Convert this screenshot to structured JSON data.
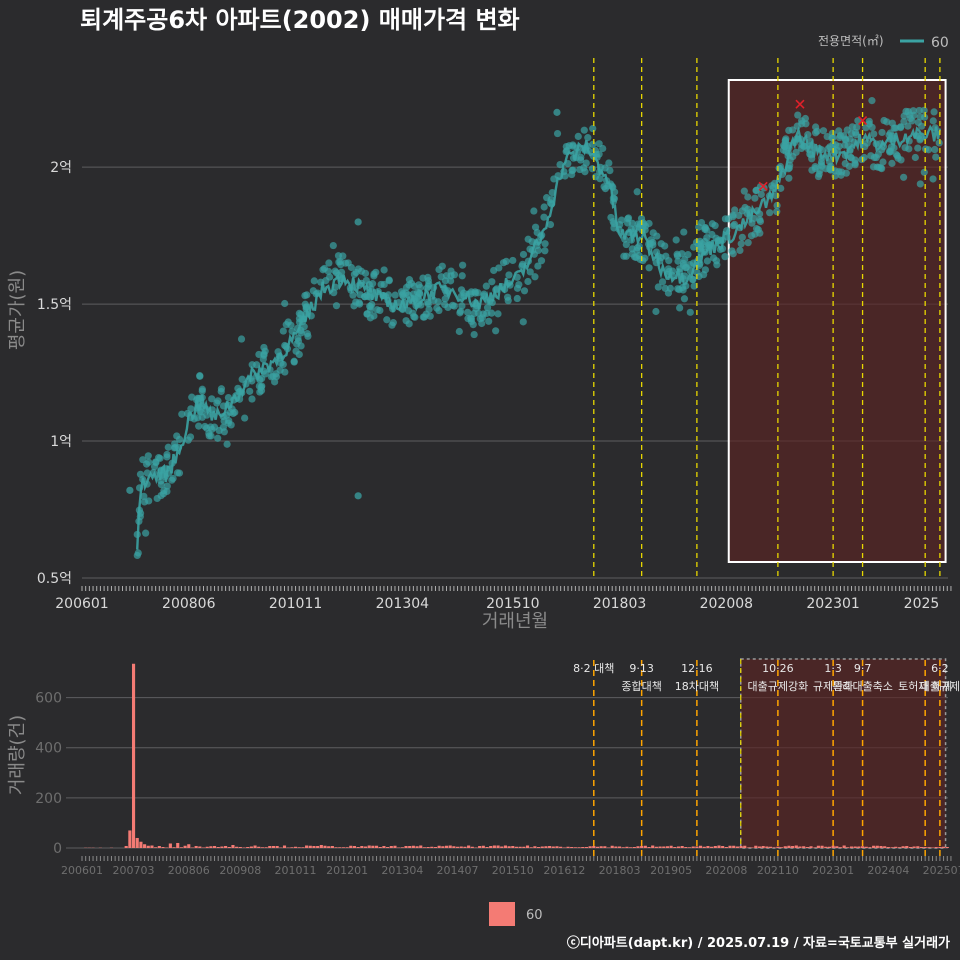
{
  "chart_data": [
    {
      "type": "scatter",
      "title": "퇴계주공6차 아파트(2002) 매매가격 변화",
      "xlabel": "거래년월",
      "ylabel": "평균가(원)",
      "ylim": [
        0.5,
        2.3
      ],
      "legend": {
        "title": "전용면적(㎡)",
        "placement": "top-right",
        "entries": [
          "60"
        ]
      },
      "x_ticks": [
        "200601",
        "200806",
        "201011",
        "201304",
        "201510",
        "201803",
        "202008",
        "202301",
        "2025"
      ],
      "y_ticks": [
        {
          "value": 0.5,
          "label": "0.5억"
        },
        {
          "value": 1.0,
          "label": "1억"
        },
        {
          "value": 1.5,
          "label": "1.5억"
        },
        {
          "value": 2.0,
          "label": "2억"
        }
      ],
      "grid": true,
      "series": [
        {
          "name": "60",
          "color": "#3ba3a3",
          "trend": [
            [
              "2007-04",
              0.58
            ],
            [
              "2007-05",
              0.85
            ],
            [
              "2007-08",
              0.87
            ],
            [
              "2007-12",
              0.88
            ],
            [
              "2008-03",
              0.95
            ],
            [
              "2008-06",
              1.08
            ],
            [
              "2008-09",
              1.15
            ],
            [
              "2009-01",
              1.08
            ],
            [
              "2009-06",
              1.15
            ],
            [
              "2009-12",
              1.25
            ],
            [
              "2010-06",
              1.3
            ],
            [
              "2010-12",
              1.4
            ],
            [
              "2011-06",
              1.55
            ],
            [
              "2011-12",
              1.6
            ],
            [
              "2012-06",
              1.55
            ],
            [
              "2012-12",
              1.5
            ],
            [
              "2013-06",
              1.5
            ],
            [
              "2014-01",
              1.55
            ],
            [
              "2014-06",
              1.55
            ],
            [
              "2015-01",
              1.5
            ],
            [
              "2015-06",
              1.55
            ],
            [
              "2015-12",
              1.6
            ],
            [
              "2016-06",
              1.75
            ],
            [
              "2016-12",
              2.02
            ],
            [
              "2017-06",
              2.08
            ],
            [
              "2017-12",
              1.95
            ],
            [
              "2018-03",
              1.75
            ],
            [
              "2018-09",
              1.75
            ],
            [
              "2019-03",
              1.62
            ],
            [
              "2019-09",
              1.6
            ],
            [
              "2020-03",
              1.7
            ],
            [
              "2020-09",
              1.75
            ],
            [
              "2021-03",
              1.82
            ],
            [
              "2021-09",
              1.9
            ],
            [
              "2022-03",
              2.12
            ],
            [
              "2022-09",
              2.05
            ],
            [
              "2023-03",
              2.05
            ],
            [
              "2023-09",
              2.1
            ],
            [
              "2024-03",
              2.08
            ],
            [
              "2024-09",
              2.12
            ],
            [
              "2025-06",
              2.12
            ]
          ],
          "outliers": [
            [
              "2007-02",
              0.82
            ],
            [
              "2012-04",
              0.8
            ],
            [
              "2012-04",
              1.8
            ],
            [
              "2016-10",
              2.2
            ]
          ]
        }
      ],
      "highlight_x": [
        "2021-01",
        "2025-07"
      ],
      "cancelled_marks": [
        [
          "2021-06",
          1.93
        ],
        [
          "2022-04",
          2.23
        ],
        [
          "2023-09",
          2.17
        ]
      ],
      "event_lines": [
        "2017-08",
        "2018-09",
        "2019-12",
        "2021-10",
        "2023-01",
        "2023-09",
        "2025-02",
        "2025-06"
      ]
    },
    {
      "type": "bar",
      "ylabel": "거래량(건)",
      "ylim": [
        0,
        750
      ],
      "legend": {
        "placement": "bottom-center",
        "entries": [
          "60"
        ]
      },
      "y_ticks": [
        {
          "value": 0,
          "label": "0"
        },
        {
          "value": 200,
          "label": "200"
        },
        {
          "value": 400,
          "label": "400"
        },
        {
          "value": 600,
          "label": "600"
        }
      ],
      "x_ticks": [
        "200601",
        "200703",
        "200806",
        "200908",
        "201011",
        "201201",
        "201304",
        "201407",
        "201510",
        "201612",
        "201803",
        "201905",
        "202008",
        "202110",
        "202301",
        "202404",
        "202507"
      ],
      "series": [
        {
          "name": "60",
          "color": "#f47b74",
          "values": [
            [
              "2007-02",
              70
            ],
            [
              "2007-03",
              735
            ],
            [
              "2007-04",
              40
            ],
            [
              "2007-05",
              25
            ],
            [
              "2007-06",
              15
            ],
            [
              "2007-08",
              10
            ],
            [
              "2008-01",
              18
            ],
            [
              "2008-03",
              20
            ],
            [
              "2008-06",
              15
            ],
            [
              "2009-01",
              8
            ],
            [
              "2009-06",
              12
            ],
            [
              "2009-12",
              10
            ],
            [
              "2010-06",
              8
            ],
            [
              "2011-06",
              12
            ],
            [
              "2012-06",
              6
            ],
            [
              "2013-06",
              8
            ],
            [
              "2014-06",
              7
            ],
            [
              "2015-06",
              10
            ],
            [
              "2016-06",
              6
            ],
            [
              "2017-06",
              4
            ],
            [
              "2018-06",
              3
            ],
            [
              "2019-06",
              4
            ],
            [
              "2020-06",
              10
            ],
            [
              "2021-06",
              8
            ],
            [
              "2022-06",
              4
            ],
            [
              "2023-06",
              6
            ],
            [
              "2024-06",
              5
            ],
            [
              "2025-05",
              4
            ]
          ]
        }
      ],
      "events": [
        {
          "date": "2017-08",
          "label1": "8·2 대책",
          "label2": ""
        },
        {
          "date": "2018-09",
          "label1": "9·13",
          "label2": "종합대책"
        },
        {
          "date": "2019-12",
          "label1": "12·16",
          "label2": "18차대책"
        },
        {
          "date": "2021-10",
          "label1": "10·26",
          "label2": "대출규제강화"
        },
        {
          "date": "2023-01",
          "label1": "1·3",
          "label2": "규제완화"
        },
        {
          "date": "2023-09",
          "label1": "9·7",
          "label2": "특례대출축소"
        },
        {
          "date": "2025-02",
          "label1": "",
          "label2": "토허제 해제"
        },
        {
          "date": "2025-06",
          "label1": "6·2",
          "label2": "대출규제"
        }
      ]
    }
  ],
  "footer": "ⓒ디아파트(dapt.kr) / 2025.07.19 / 자료=국토교통부 실거래가"
}
